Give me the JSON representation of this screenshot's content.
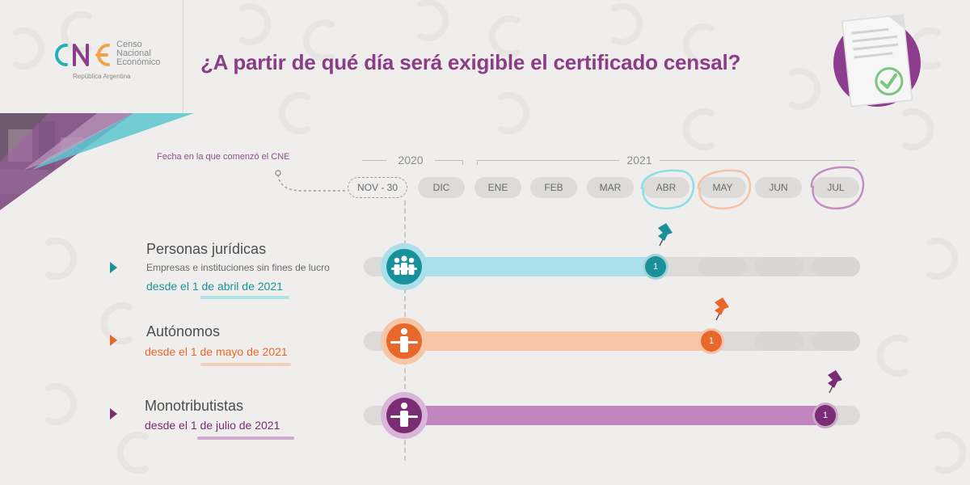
{
  "header": {
    "logo_text_lines": [
      "Censo",
      "Nacional",
      "Económico"
    ],
    "logo_subtitle": "República Argentina",
    "title": "¿A partir de qué día será exigible el certificado censal?"
  },
  "timeline": {
    "note": "Fecha en la que comenzó el CNE",
    "years": [
      "2020",
      "2021"
    ],
    "months": [
      "NOV - 30",
      "DIC",
      "ENE",
      "FEB",
      "MAR",
      "ABR",
      "MAY",
      "JUN",
      "JUL"
    ]
  },
  "rows": [
    {
      "label": "Personas jurídicas",
      "sublabel": "Empresas e instituciones sin fines de lucro",
      "date_text": "desde el 1 de abril de 2021",
      "marker": "1",
      "color": "#19919a",
      "bar_color": "#a9e0ea",
      "icon": "group-people-icon"
    },
    {
      "label": "Autónomos",
      "date_text": "desde el 1 de mayo de 2021",
      "marker": "1",
      "color": "#e8682b",
      "bar_color": "#f7c6a6",
      "icon": "person-icon"
    },
    {
      "label": "Monotributistas",
      "date_text": "desde el 1 de julio de 2021",
      "marker": "1",
      "color": "#7a2c74",
      "bar_color": "#c084be",
      "icon": "person-icon"
    }
  ],
  "colors": {
    "title": "#8b3d86",
    "logo_teal": "#1fb0b8",
    "logo_purple": "#8b3d86",
    "logo_orange": "#f0a24a",
    "highlight_abr": "#8fdde6",
    "highlight_may": "#f5c2a6",
    "highlight_jul": "#c48dc2"
  }
}
